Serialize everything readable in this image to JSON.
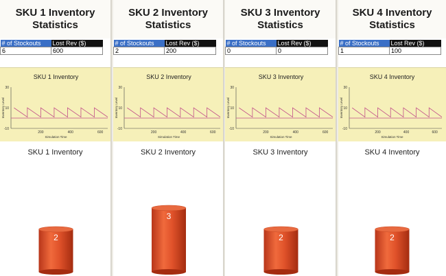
{
  "skus": [
    {
      "title": "SKU 1 Inventory Statistics",
      "stockouts_header": "# of Stockouts",
      "lostrev_header": "Lost Rev ($)",
      "stockouts": "6",
      "lost_rev": "600",
      "chart_title": "SKU 1 Inventory",
      "y_label": "Inventory Level",
      "x_label": "Simulation Time",
      "y_ticks": [
        "30",
        "10",
        "-10"
      ],
      "x_ticks": [
        "200",
        "400",
        "600"
      ],
      "bar_title": "SKU 1 Inventory",
      "bar_value": "2"
    },
    {
      "title": "SKU 2 Inventory Statistics",
      "stockouts_header": "# of Stockouts",
      "lostrev_header": "Lost Rev ($)",
      "stockouts": "2",
      "lost_rev": "200",
      "chart_title": "SKU 2 Inventory",
      "y_label": "Inventory Level",
      "x_label": "Simulation Time",
      "y_ticks": [
        "30",
        "10",
        "-10"
      ],
      "x_ticks": [
        "200",
        "400",
        "600"
      ],
      "bar_title": "SKU 2 Inventory",
      "bar_value": "3"
    },
    {
      "title": "SKU 3 Inventory Statistics",
      "stockouts_header": "# of Stockouts",
      "lostrev_header": "Lost Rev ($)",
      "stockouts": "0",
      "lost_rev": "0",
      "chart_title": "SKU 3 Inventory",
      "y_label": "Inventory Level",
      "x_label": "Simulation Time",
      "y_ticks": [
        "30",
        "10",
        "-10"
      ],
      "x_ticks": [
        "200",
        "400",
        "600"
      ],
      "bar_title": "SKU 3 Inventory",
      "bar_value": "2"
    },
    {
      "title": "SKU 4 Inventory Statistics",
      "stockouts_header": "# of Stockouts",
      "lostrev_header": "Lost Rev ($)",
      "stockouts": "1",
      "lost_rev": "100",
      "chart_title": "SKU 4 Inventory",
      "y_label": "Inventory Level",
      "x_label": "Simulation Time",
      "y_ticks": [
        "30",
        "10",
        "-10"
      ],
      "x_ticks": [
        "200",
        "400",
        "600"
      ],
      "bar_title": "SKU 4 Inventory",
      "bar_value": "2"
    }
  ],
  "colors": {
    "line": "#c2508a",
    "bar": "#e0522a",
    "bar_dark": "#b53a17",
    "chart_bg": "#f6f0b9",
    "stockout_header": "#3a6fc6"
  }
}
